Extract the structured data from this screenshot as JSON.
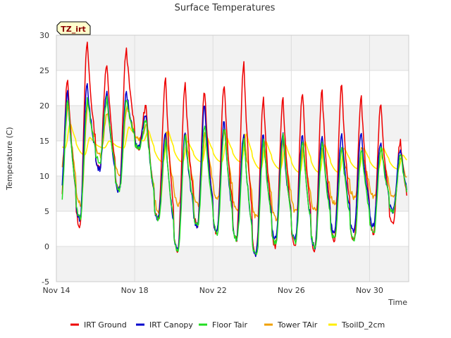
{
  "chart_data": {
    "type": "line",
    "title": "Surface Temperatures",
    "tag": "TZ_irt",
    "xlabel": "Time",
    "ylabel": "Temperature (C)",
    "xlim": [
      0,
      18
    ],
    "ylim": [
      -5,
      30
    ],
    "y_ticks": [
      -5,
      0,
      5,
      10,
      15,
      20,
      25,
      30
    ],
    "x_ticks": [
      {
        "day": 0,
        "label": "Nov 14"
      },
      {
        "day": 4,
        "label": "Nov 18"
      },
      {
        "day": 8,
        "label": "Nov 22"
      },
      {
        "day": 12,
        "label": "Nov 26"
      },
      {
        "day": 16,
        "label": "Nov 30"
      }
    ],
    "x_unit": "days since Nov 14",
    "grid": true,
    "legend_position": "bottom",
    "daily": {
      "days": [
        0,
        1,
        2,
        3,
        4,
        5,
        6,
        7,
        8,
        9,
        10,
        11,
        12,
        13,
        14,
        15,
        16,
        17
      ],
      "irt_ground_max": [
        24,
        29,
        26,
        28,
        20,
        24,
        23,
        22,
        23,
        26,
        21,
        21,
        22,
        22,
        23,
        21,
        20,
        15
      ],
      "irt_ground_min": [
        4,
        3,
        11,
        8,
        14,
        4,
        -0.5,
        3,
        2,
        1,
        -1,
        0,
        0,
        -0.5,
        1,
        1,
        2,
        3
      ],
      "irt_canopy_max": [
        22,
        23,
        22,
        22,
        19,
        16,
        16,
        20,
        18,
        16,
        16,
        16,
        16,
        16,
        16,
        16,
        15,
        14
      ],
      "irt_canopy_min": [
        6,
        4,
        11,
        8,
        14,
        4,
        -0.5,
        3,
        2,
        1,
        -1,
        1,
        1,
        0,
        2,
        2,
        3,
        5
      ],
      "floor_tair_max": [
        21,
        21,
        21,
        21,
        18,
        15,
        16,
        17,
        17,
        15,
        15,
        16,
        15,
        15,
        14,
        14,
        14,
        13
      ],
      "floor_tair_min": [
        5,
        4,
        12,
        8,
        14,
        4,
        -0.5,
        3,
        2,
        1,
        -1.5,
        0.5,
        0.5,
        0,
        1,
        1,
        2,
        5
      ],
      "tower_tair_max": [
        20,
        20,
        19,
        20,
        17,
        16,
        16,
        16,
        17,
        16,
        15,
        15,
        14,
        14,
        14,
        14,
        14,
        13
      ],
      "tower_tair_min": [
        11,
        6,
        13,
        10,
        15,
        5,
        6,
        6,
        7,
        5,
        4,
        4,
        5,
        5,
        6,
        7,
        7,
        7
      ],
      "tsoil_max": [
        17.5,
        15.5,
        15,
        17,
        16.5,
        16.5,
        15,
        15.5,
        15.5,
        16,
        15,
        14.5,
        15,
        14.5,
        14,
        14,
        14,
        13
      ],
      "tsoil_min": [
        14,
        13,
        14,
        14,
        15,
        12,
        12,
        12,
        12,
        12,
        11,
        11,
        10.5,
        10.5,
        10.5,
        11,
        11,
        11
      ]
    },
    "series": [
      {
        "name": "IRT Ground",
        "color": "#ee0000",
        "max_key": "irt_ground_max",
        "min_key": "irt_ground_min",
        "peak": 0.58,
        "trough": 0.2
      },
      {
        "name": "IRT Canopy",
        "color": "#0000cc",
        "max_key": "irt_canopy_max",
        "min_key": "irt_canopy_min",
        "peak": 0.58,
        "trough": 0.2
      },
      {
        "name": "Floor Tair",
        "color": "#22dd22",
        "max_key": "floor_tair_max",
        "min_key": "floor_tair_min",
        "peak": 0.6,
        "trough": 0.22
      },
      {
        "name": "Tower TAir",
        "color": "#f0a000",
        "max_key": "tower_tair_max",
        "min_key": "tower_tair_min",
        "peak": 0.62,
        "trough": 0.25
      },
      {
        "name": "TsoilD_2cm",
        "color": "#ffee00",
        "max_key": "tsoil_max",
        "min_key": "tsoil_min",
        "peak": 0.72,
        "trough": 0.45
      }
    ]
  }
}
